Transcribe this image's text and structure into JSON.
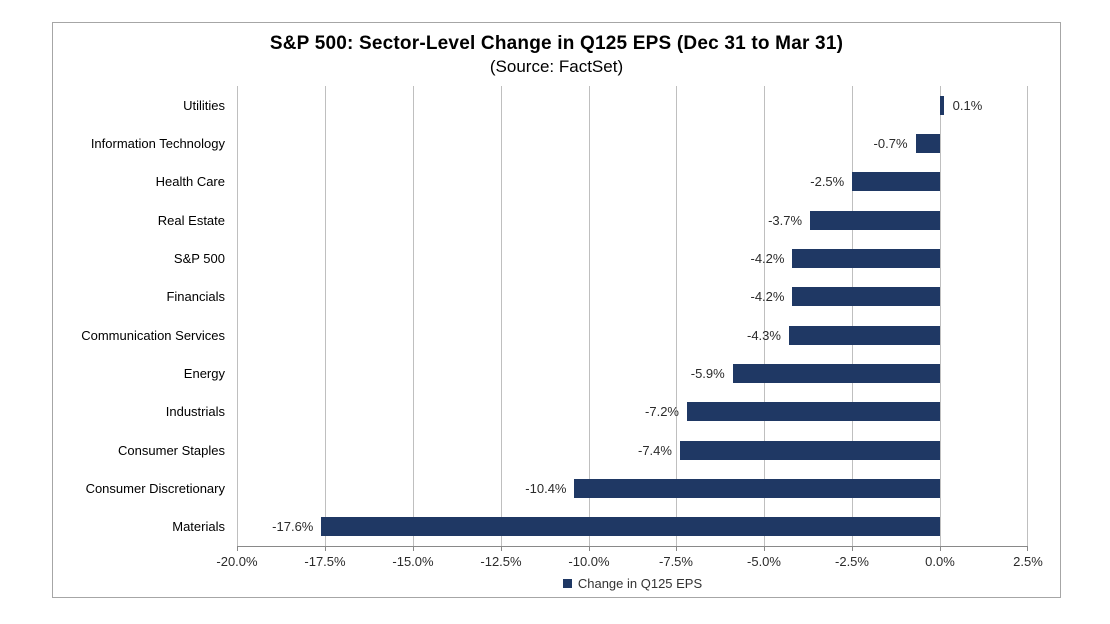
{
  "chart_data": {
    "type": "bar",
    "orientation": "horizontal",
    "title": "S&P 500: Sector-Level Change in Q125 EPS (Dec 31 to Mar 31)",
    "subtitle": "(Source: FactSet)",
    "categories": [
      "Utilities",
      "Information Technology",
      "Health Care",
      "Real Estate",
      "S&P 500",
      "Financials",
      "Communication Services",
      "Energy",
      "Industrials",
      "Consumer Staples",
      "Consumer Discretionary",
      "Materials"
    ],
    "values": [
      0.1,
      -0.7,
      -2.5,
      -3.7,
      -4.2,
      -4.2,
      -4.3,
      -5.9,
      -7.2,
      -7.4,
      -10.4,
      -17.6
    ],
    "value_labels": [
      "0.1%",
      "-0.7%",
      "-2.5%",
      "-3.7%",
      "-4.2%",
      "-4.2%",
      "-4.3%",
      "-5.9%",
      "-7.2%",
      "-7.4%",
      "-10.4%",
      "-17.6%"
    ],
    "xlim": [
      -20.0,
      2.5
    ],
    "x_tick_values": [
      -20.0,
      -17.5,
      -15.0,
      -12.5,
      -10.0,
      -7.5,
      -5.0,
      -2.5,
      0.0,
      2.5
    ],
    "x_tick_labels": [
      "-20.0%",
      "-17.5%",
      "-15.0%",
      "-12.5%",
      "-10.0%",
      "-7.5%",
      "-5.0%",
      "-2.5%",
      "0.0%",
      "2.5%"
    ],
    "grid": true,
    "legend": {
      "label": "Change in Q125 EPS",
      "position": "bottom"
    },
    "colors": {
      "bar": "#1f3864",
      "gridline": "#bfbfbf",
      "axis_line": "#898989",
      "border": "#a6a6a6",
      "title_text": "#000000",
      "label_text": "#2b2b2b"
    }
  }
}
